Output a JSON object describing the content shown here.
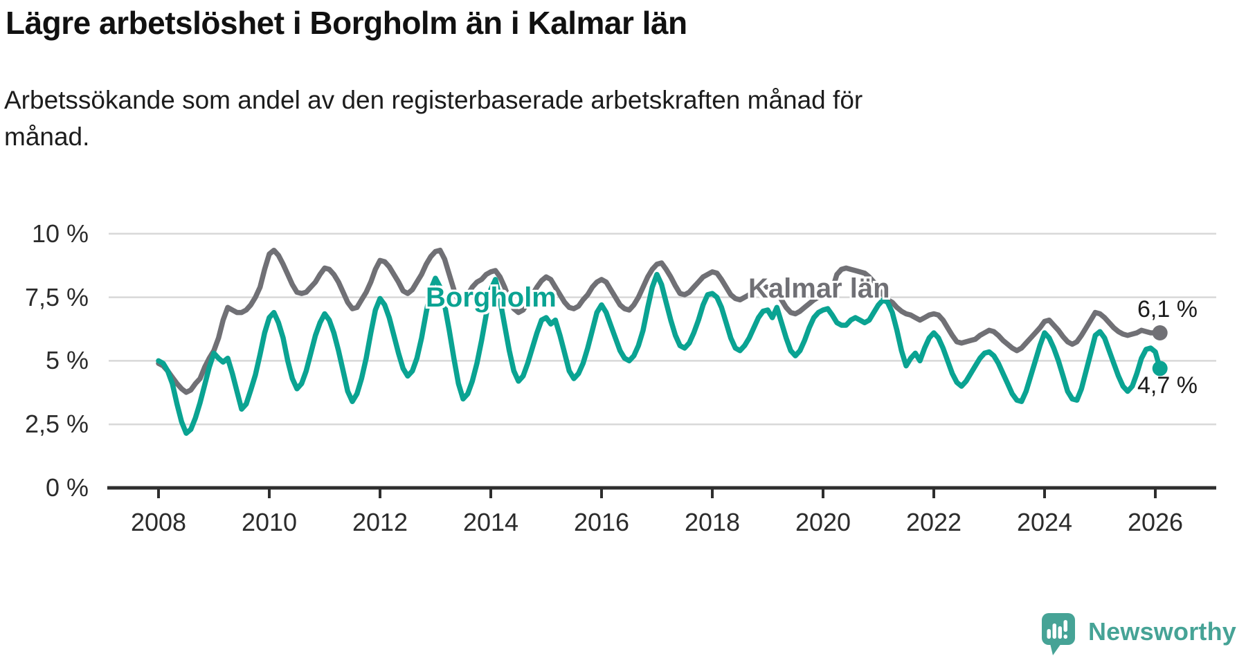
{
  "title": "Lägre arbetslöshet i Borgholm än i Kalmar län",
  "subtitle_lines": [
    "Arbetssökande som andel av den registerbaserade arbetskraften månad för",
    "månad."
  ],
  "series_labels": {
    "borgholm": "Borgholm",
    "kalmar": "Kalmar län"
  },
  "end_labels": {
    "kalmar": "6,1 %",
    "borgholm": "4,7 %"
  },
  "branding": {
    "name": "Newsworthy"
  },
  "colors": {
    "borgholm": "#0aa392",
    "kalmar": "#707075",
    "gridline": "#d8d8d8",
    "axis": "#2e2e2e",
    "text": "#1c1c1c",
    "logo_teal": "#46a396"
  },
  "y_axis": {
    "ticks": [
      {
        "value": 0,
        "label": "0 %"
      },
      {
        "value": 2.5,
        "label": "2,5 %"
      },
      {
        "value": 5,
        "label": "5 %"
      },
      {
        "value": 7.5,
        "label": "7,5 %"
      },
      {
        "value": 10,
        "label": "10 %"
      }
    ]
  },
  "x_axis": {
    "ticks": [
      {
        "value": 2008,
        "label": "2008"
      },
      {
        "value": 2010,
        "label": "2010"
      },
      {
        "value": 2012,
        "label": "2012"
      },
      {
        "value": 2014,
        "label": "2014"
      },
      {
        "value": 2016,
        "label": "2016"
      },
      {
        "value": 2018,
        "label": "2018"
      },
      {
        "value": 2020,
        "label": "2020"
      },
      {
        "value": 2022,
        "label": "2022"
      },
      {
        "value": 2024,
        "label": "2024"
      },
      {
        "value": 2026,
        "label": "2026"
      }
    ]
  },
  "chart_data": {
    "type": "line",
    "title": "Lägre arbetslöshet i Borgholm än i Kalmar län",
    "subtitle": "Arbetssökande som andel av den registerbaserade arbetskraften månad för månad.",
    "unit": "%",
    "frequency": "monthly",
    "x_start": "2008-01",
    "x_end": "2026-02",
    "ylim": [
      0,
      10
    ],
    "yticks": [
      0,
      2.5,
      5,
      7.5,
      10
    ],
    "xticks": [
      2008,
      2010,
      2012,
      2014,
      2016,
      2018,
      2020,
      2022,
      2024,
      2026
    ],
    "grid": "horizontal",
    "legend": "inline-labels",
    "end_dots": true,
    "end_values": {
      "Kalmar län": 6.1,
      "Borgholm": 4.7
    },
    "series": [
      {
        "name": "Kalmar län",
        "color": "#707075",
        "values": [
          4.9,
          4.8,
          4.6,
          4.35,
          4.1,
          3.9,
          3.76,
          3.85,
          4.1,
          4.3,
          4.75,
          5.1,
          5.4,
          5.9,
          6.6,
          7.1,
          7.0,
          6.9,
          6.9,
          7.0,
          7.2,
          7.5,
          7.9,
          8.6,
          9.2,
          9.35,
          9.15,
          8.8,
          8.4,
          8.0,
          7.7,
          7.65,
          7.7,
          7.9,
          8.1,
          8.4,
          8.65,
          8.6,
          8.4,
          8.1,
          7.7,
          7.3,
          7.05,
          7.1,
          7.4,
          7.7,
          8.1,
          8.6,
          8.95,
          8.9,
          8.7,
          8.4,
          8.1,
          7.75,
          7.65,
          7.8,
          8.1,
          8.4,
          8.8,
          9.1,
          9.3,
          9.35,
          9.0,
          8.4,
          7.8,
          7.35,
          7.3,
          7.6,
          7.9,
          8.1,
          8.2,
          8.4,
          8.5,
          8.55,
          8.3,
          7.9,
          7.4,
          7.05,
          6.9,
          7.0,
          7.3,
          7.6,
          7.9,
          8.15,
          8.3,
          8.2,
          7.9,
          7.6,
          7.3,
          7.1,
          7.05,
          7.15,
          7.4,
          7.6,
          7.9,
          8.1,
          8.2,
          8.1,
          7.8,
          7.5,
          7.2,
          7.05,
          7.0,
          7.2,
          7.5,
          7.9,
          8.3,
          8.6,
          8.8,
          8.85,
          8.6,
          8.3,
          7.95,
          7.65,
          7.6,
          7.7,
          7.9,
          8.1,
          8.3,
          8.4,
          8.5,
          8.45,
          8.2,
          7.9,
          7.6,
          7.45,
          7.4,
          7.5,
          7.6,
          7.7,
          7.8,
          7.9,
          7.9,
          7.85,
          7.7,
          7.4,
          7.1,
          6.9,
          6.85,
          6.95,
          7.1,
          7.25,
          7.4,
          7.5,
          7.6,
          7.6,
          7.8,
          8.4,
          8.6,
          8.65,
          8.6,
          8.55,
          8.5,
          8.45,
          8.3,
          8.1,
          7.9,
          7.6,
          7.4,
          7.3,
          7.1,
          6.95,
          6.85,
          6.8,
          6.7,
          6.6,
          6.7,
          6.8,
          6.85,
          6.8,
          6.6,
          6.3,
          6.0,
          5.75,
          5.7,
          5.75,
          5.8,
          5.85,
          6.0,
          6.1,
          6.2,
          6.15,
          6.0,
          5.8,
          5.65,
          5.5,
          5.4,
          5.5,
          5.7,
          5.9,
          6.1,
          6.3,
          6.55,
          6.6,
          6.4,
          6.2,
          5.95,
          5.75,
          5.65,
          5.75,
          6.0,
          6.3,
          6.6,
          6.9,
          6.85,
          6.7,
          6.5,
          6.3,
          6.15,
          6.05,
          6.0,
          6.05,
          6.1,
          6.2,
          6.15,
          6.1,
          6.1,
          6.1
        ]
      },
      {
        "name": "Borgholm",
        "color": "#0aa392",
        "values": [
          5.0,
          4.9,
          4.6,
          4.1,
          3.3,
          2.6,
          2.15,
          2.3,
          2.75,
          3.35,
          4.05,
          4.75,
          5.3,
          5.1,
          4.95,
          5.1,
          4.5,
          3.8,
          3.1,
          3.3,
          3.85,
          4.45,
          5.25,
          6.1,
          6.7,
          6.9,
          6.5,
          5.9,
          5.0,
          4.3,
          3.9,
          4.1,
          4.6,
          5.3,
          6.0,
          6.5,
          6.85,
          6.6,
          6.1,
          5.4,
          4.6,
          3.8,
          3.4,
          3.7,
          4.3,
          5.1,
          6.1,
          7.0,
          7.45,
          7.2,
          6.7,
          6.0,
          5.3,
          4.7,
          4.4,
          4.6,
          5.1,
          5.9,
          6.9,
          7.8,
          8.25,
          7.9,
          7.2,
          6.2,
          5.1,
          4.1,
          3.5,
          3.7,
          4.2,
          4.9,
          5.8,
          6.8,
          7.8,
          8.2,
          7.4,
          6.4,
          5.4,
          4.6,
          4.2,
          4.4,
          4.9,
          5.5,
          6.1,
          6.6,
          6.7,
          6.45,
          6.6,
          6.0,
          5.3,
          4.6,
          4.3,
          4.5,
          4.9,
          5.5,
          6.2,
          6.9,
          7.2,
          6.9,
          6.4,
          5.9,
          5.4,
          5.1,
          5.0,
          5.2,
          5.6,
          6.2,
          7.1,
          7.9,
          8.4,
          8.0,
          7.3,
          6.6,
          6.0,
          5.6,
          5.5,
          5.7,
          6.1,
          6.6,
          7.2,
          7.6,
          7.65,
          7.5,
          7.1,
          6.5,
          5.9,
          5.5,
          5.4,
          5.6,
          5.9,
          6.3,
          6.7,
          6.95,
          7.0,
          6.7,
          7.1,
          6.5,
          5.9,
          5.4,
          5.2,
          5.4,
          5.8,
          6.3,
          6.7,
          6.9,
          7.0,
          7.05,
          6.8,
          6.5,
          6.4,
          6.4,
          6.6,
          6.7,
          6.6,
          6.5,
          6.6,
          6.9,
          7.2,
          7.4,
          7.3,
          6.9,
          6.2,
          5.4,
          4.8,
          5.1,
          5.3,
          5.0,
          5.5,
          5.9,
          6.1,
          5.9,
          5.5,
          5.0,
          4.5,
          4.15,
          4.0,
          4.2,
          4.5,
          4.8,
          5.1,
          5.3,
          5.35,
          5.2,
          4.9,
          4.5,
          4.1,
          3.7,
          3.45,
          3.4,
          3.8,
          4.4,
          5.0,
          5.6,
          6.1,
          5.9,
          5.5,
          5.0,
          4.4,
          3.8,
          3.5,
          3.45,
          3.9,
          4.6,
          5.3,
          6.0,
          6.15,
          5.9,
          5.4,
          4.9,
          4.4,
          4.0,
          3.8,
          4.0,
          4.5,
          5.1,
          5.45,
          5.5,
          5.35,
          4.7
        ]
      }
    ]
  },
  "geometry_note": ""
}
